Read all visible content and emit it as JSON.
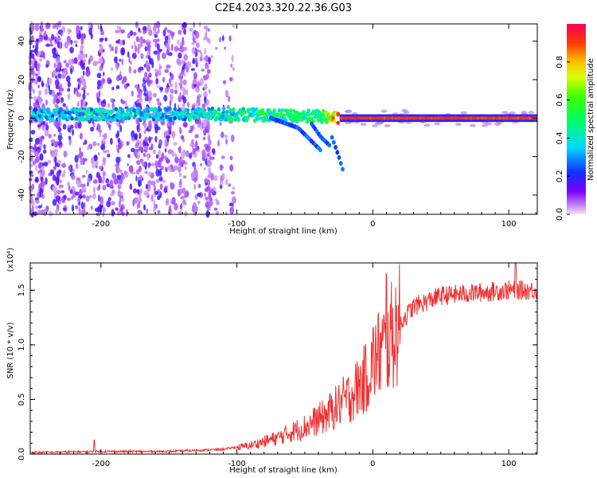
{
  "title": "C2E4.2023.320.22.36.G03",
  "chart_data": [
    {
      "type": "heatmap",
      "xlabel": "Height of straight line (km)",
      "ylabel": "Frequency (Hz)",
      "xlim": [
        -252,
        121
      ],
      "ylim": [
        -50,
        49
      ],
      "x_ticks": [
        -200,
        -100,
        0,
        100
      ],
      "x_tick_labels": [
        "-200",
        "-100",
        "0",
        "100"
      ],
      "y_ticks": [
        -40,
        -20,
        0,
        20,
        40
      ],
      "y_tick_labels": [
        "-40",
        "-20",
        "0",
        "20",
        "40"
      ],
      "colorbar": {
        "label": "Normalized spectral amplitude",
        "range": [
          0,
          1
        ],
        "ticks": [
          0.0,
          0.2,
          0.4,
          0.6,
          0.8
        ],
        "tick_labels": [
          "0.0",
          "0.2",
          "0.4",
          "0.6",
          "0.8"
        ],
        "colormap": "rainbow"
      },
      "ridge": {
        "x": [
          -250,
          -200,
          -150,
          -100,
          -60,
          -40,
          -25,
          -20,
          0,
          50,
          100,
          120
        ],
        "y": [
          2,
          2,
          2,
          2,
          1,
          1,
          0,
          0,
          0,
          0,
          0,
          0
        ],
        "amplitude": [
          0.35,
          0.4,
          0.35,
          0.45,
          0.5,
          0.5,
          0.9,
          0.95,
          0.9,
          0.92,
          0.9,
          0.9
        ]
      },
      "descending_branches": [
        {
          "x": [
            -75,
            -55,
            -45,
            -38
          ],
          "y": [
            0,
            -5,
            -12,
            -17
          ]
        },
        {
          "x": [
            -45,
            -38,
            -32
          ],
          "y": [
            -3,
            -10,
            -14
          ]
        },
        {
          "x": [
            -30,
            -25,
            -22
          ],
          "y": [
            -10,
            -20,
            -27
          ]
        }
      ]
    },
    {
      "type": "line",
      "xlabel": "Height of straight line (km)",
      "ylabel": "SNR (10 * v/v)",
      "y_scale_note": "(x10⁴)",
      "xlim": [
        -252,
        121
      ],
      "ylim": [
        0,
        1.75
      ],
      "x_ticks": [
        -200,
        -100,
        0,
        100
      ],
      "x_tick_labels": [
        "-200",
        "-100",
        "0",
        "100"
      ],
      "y_ticks": [
        0.0,
        0.5,
        1.0,
        1.5
      ],
      "y_tick_labels": [
        "0.0",
        "0.5",
        "1.0",
        "1.5"
      ],
      "color": "#ee3333",
      "trend": {
        "x": [
          -252,
          -200,
          -150,
          -110,
          -90,
          -70,
          -50,
          -35,
          -25,
          -15,
          -5,
          0,
          10,
          20,
          30,
          50,
          80,
          100,
          121
        ],
        "y": [
          0.01,
          0.02,
          0.02,
          0.04,
          0.08,
          0.15,
          0.25,
          0.35,
          0.45,
          0.55,
          0.7,
          0.85,
          1.0,
          1.2,
          1.35,
          1.45,
          1.48,
          1.5,
          1.5
        ]
      },
      "peaks": [
        {
          "x": -205,
          "y": 0.13
        },
        {
          "x": 10,
          "y": 1.65
        },
        {
          "x": 105,
          "y": 1.75
        }
      ]
    }
  ]
}
